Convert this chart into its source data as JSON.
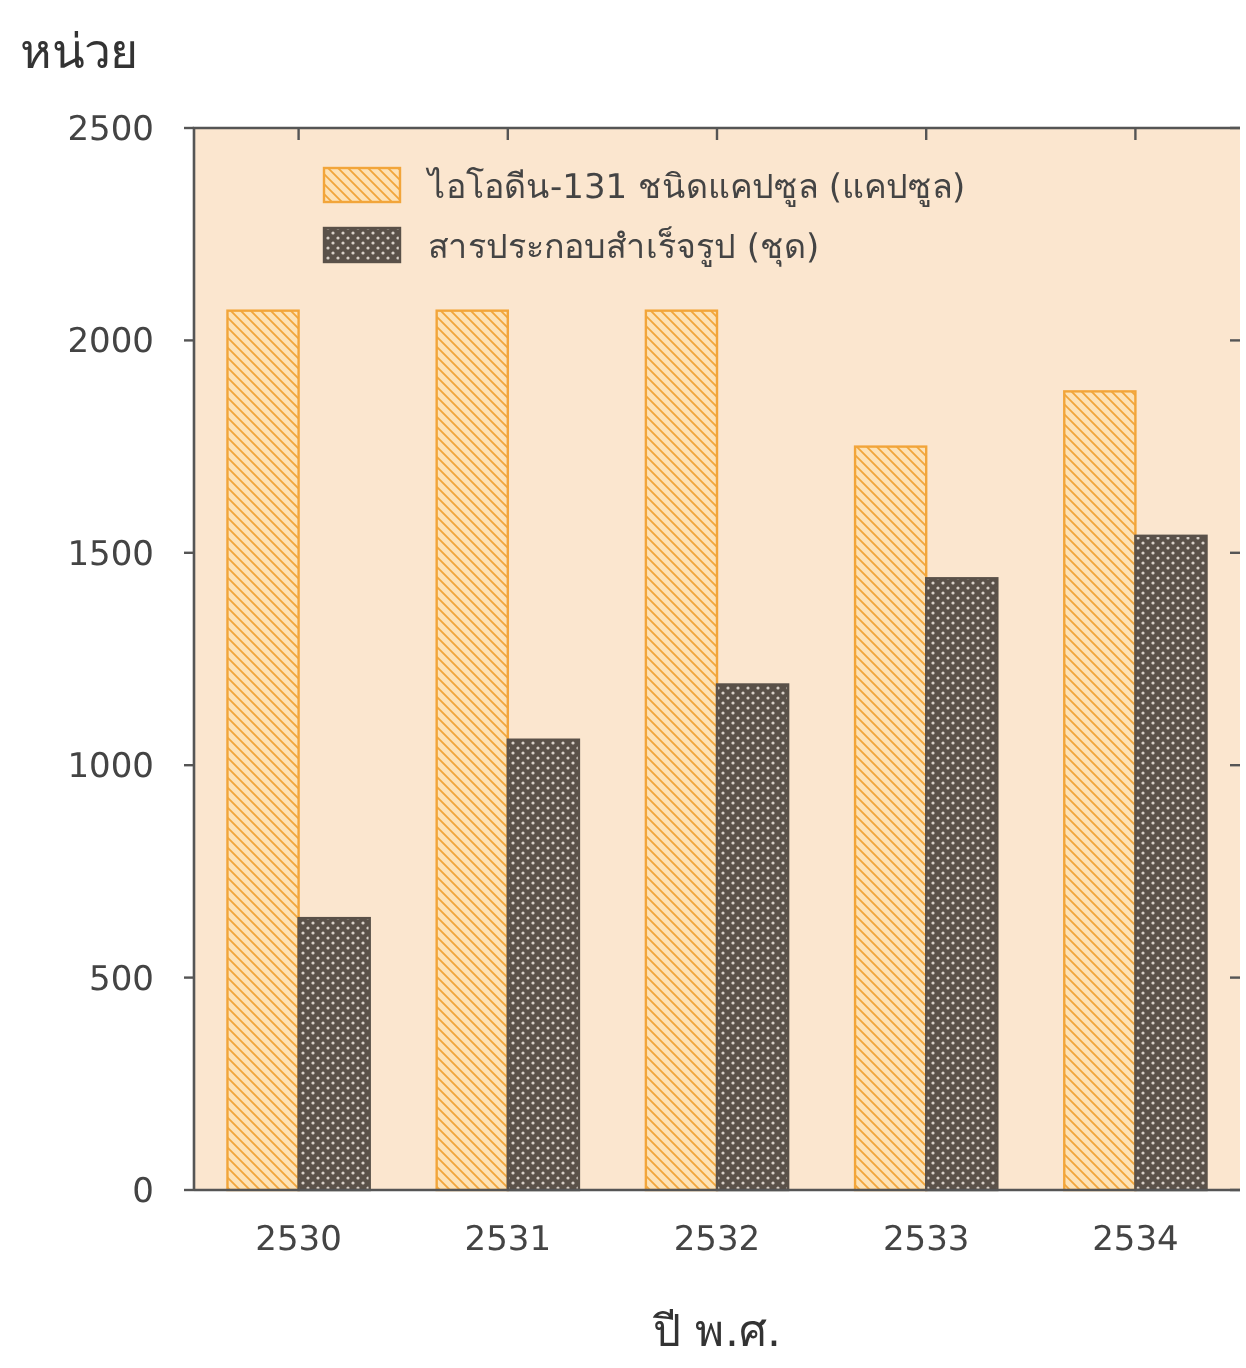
{
  "chart_data": {
    "type": "bar",
    "ylabel": "หน่วย",
    "xlabel": "ปี พ.ศ.",
    "categories": [
      "2530",
      "2531",
      "2532",
      "2533",
      "2534"
    ],
    "series": [
      {
        "name": "ไอโอดีน-131 ชนิดแคปซูล (แคปซูล)",
        "color": "#f2a53a",
        "values": [
          2070,
          2070,
          2070,
          1750,
          1880
        ]
      },
      {
        "name": "สารประกอบสำเร็จรูป (ชุด)",
        "color": "#5a5149",
        "values": [
          640,
          1060,
          1190,
          1440,
          1540
        ]
      }
    ],
    "ylim": [
      0,
      2500
    ],
    "yticks": [
      0,
      500,
      1000,
      1500,
      2000,
      2500
    ],
    "legend": "top left"
  }
}
